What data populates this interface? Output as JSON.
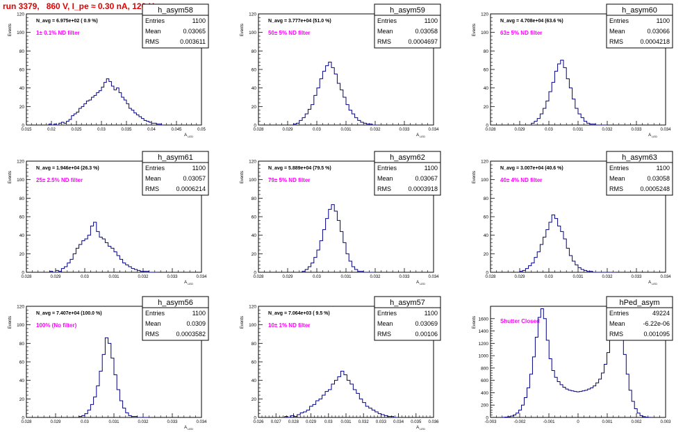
{
  "run_title": "run 3379,   860 V, I_pe ≈ 0.30 nA, 120 Hz",
  "colors": {
    "hist": "#000080",
    "title": "#e00000",
    "note": "#ff00ff"
  },
  "chart_data": [
    {
      "type": "bar",
      "name": "h_asym58",
      "navg": "N_avg = 6.975e+02 ( 0.9 %)",
      "note": "1± 0.1% ND filter",
      "entries": "1100",
      "mean": "0.03065",
      "rms": "0.003611",
      "ylabel": "Events",
      "xlabel": "A_LED",
      "xlim": [
        0.015,
        0.05
      ],
      "ylim": [
        0,
        120
      ],
      "xticks": [
        "0.015",
        "0.02",
        "0.025",
        "0.03",
        "0.035",
        "0.04",
        "0.045",
        "0.05"
      ],
      "yticks": [
        "0",
        "20",
        "40",
        "60",
        "80",
        "100",
        "120"
      ],
      "bin_edges": [
        0.0195,
        0.0425
      ],
      "counts": [
        1,
        0,
        1,
        0,
        2,
        3,
        2,
        4,
        6,
        10,
        12,
        14,
        18,
        20,
        23,
        26,
        27,
        30,
        32,
        35,
        37,
        41,
        46,
        50,
        47,
        42,
        38,
        40,
        35,
        30,
        27,
        23,
        18,
        16,
        13,
        11,
        9,
        7,
        5,
        4,
        3,
        2,
        2,
        1,
        1,
        0
      ]
    },
    {
      "type": "bar",
      "name": "h_asym59",
      "navg": "N_avg = 3.777e+04 (51.0 %)",
      "note": "50± 5% ND filter",
      "entries": "1100",
      "mean": "0.03058",
      "rms": "0.0004697",
      "ylabel": "Events",
      "xlabel": "A_LED",
      "xlim": [
        0.028,
        0.034
      ],
      "ylim": [
        0,
        120
      ],
      "xticks": [
        "0.028",
        "0.029",
        "0.03",
        "0.031",
        "0.032",
        "0.033",
        "0.034"
      ],
      "yticks": [
        "0",
        "20",
        "40",
        "60",
        "80",
        "100",
        "120"
      ],
      "bin_edges": [
        0.0292,
        0.0321
      ],
      "counts": [
        1,
        2,
        5,
        8,
        12,
        17,
        22,
        32,
        40,
        50,
        58,
        64,
        68,
        62,
        55,
        45,
        38,
        30,
        22,
        16,
        12,
        8,
        5,
        3,
        2,
        1,
        1,
        0,
        0
      ]
    },
    {
      "type": "bar",
      "name": "h_asym60",
      "navg": "N_avg = 4.708e+04 (63.6 %)",
      "note": "63± 5% ND filter",
      "entries": "1100",
      "mean": "0.03066",
      "rms": "0.0004218",
      "ylabel": "Events",
      "xlabel": "A_LED",
      "xlim": [
        0.028,
        0.034
      ],
      "ylim": [
        0,
        120
      ],
      "xticks": [
        "0.028",
        "0.029",
        "0.03",
        "0.031",
        "0.032",
        "0.033",
        "0.034"
      ],
      "yticks": [
        "0",
        "20",
        "40",
        "60",
        "80",
        "100",
        "120"
      ],
      "bin_edges": [
        0.0294,
        0.032
      ],
      "counts": [
        2,
        4,
        7,
        12,
        18,
        26,
        36,
        46,
        58,
        66,
        70,
        62,
        50,
        40,
        28,
        18,
        12,
        8,
        4,
        2,
        1,
        1,
        0,
        0,
        0,
        0
      ]
    },
    {
      "type": "bar",
      "name": "h_asym61",
      "navg": "N_avg = 1.946e+04 (26.3 %)",
      "note": "25± 2.5% ND filter",
      "entries": "1100",
      "mean": "0.03057",
      "rms": "0.0006214",
      "ylabel": "Events",
      "xlabel": "A_LED",
      "xlim": [
        0.028,
        0.034
      ],
      "ylim": [
        0,
        120
      ],
      "xticks": [
        "0.028",
        "0.029",
        "0.03",
        "0.031",
        "0.032",
        "0.033",
        "0.034"
      ],
      "yticks": [
        "0",
        "20",
        "40",
        "60",
        "80",
        "100",
        "120"
      ],
      "bin_edges": [
        0.0288,
        0.0325
      ],
      "counts": [
        1,
        0,
        2,
        1,
        4,
        6,
        10,
        14,
        20,
        26,
        30,
        34,
        36,
        40,
        50,
        54,
        44,
        38,
        36,
        32,
        28,
        26,
        22,
        18,
        14,
        10,
        8,
        6,
        4,
        3,
        2,
        1,
        1,
        1,
        0,
        0,
        0
      ]
    },
    {
      "type": "bar",
      "name": "h_asym62",
      "navg": "N_avg = 5.889e+04 (79.5 %)",
      "note": "79± 5% ND filter",
      "entries": "1100",
      "mean": "0.03067",
      "rms": "0.0003918",
      "ylabel": "Events",
      "xlabel": "A_LED",
      "xlim": [
        0.028,
        0.034
      ],
      "ylim": [
        0,
        120
      ],
      "xticks": [
        "0.028",
        "0.029",
        "0.03",
        "0.031",
        "0.032",
        "0.033",
        "0.034"
      ],
      "yticks": [
        "0",
        "20",
        "40",
        "60",
        "80",
        "100",
        "120"
      ],
      "bin_edges": [
        0.0295,
        0.032
      ],
      "counts": [
        1,
        3,
        6,
        10,
        16,
        24,
        34,
        46,
        58,
        68,
        73,
        66,
        56,
        44,
        32,
        20,
        12,
        6,
        3,
        1,
        1,
        0,
        0,
        0,
        0
      ]
    },
    {
      "type": "bar",
      "name": "h_asym63",
      "navg": "N_avg = 3.007e+04 (40.6 %)",
      "note": "40± 4% ND filter",
      "entries": "1100",
      "mean": "0.03058",
      "rms": "0.0005248",
      "ylabel": "Events",
      "xlabel": "A_LED",
      "xlim": [
        0.028,
        0.034
      ],
      "ylim": [
        0,
        120
      ],
      "xticks": [
        "0.028",
        "0.029",
        "0.03",
        "0.031",
        "0.032",
        "0.033",
        "0.034"
      ],
      "yticks": [
        "0",
        "20",
        "40",
        "60",
        "80",
        "100",
        "120"
      ],
      "bin_edges": [
        0.029,
        0.0323
      ],
      "counts": [
        1,
        2,
        4,
        7,
        10,
        16,
        22,
        30,
        38,
        46,
        54,
        62,
        58,
        50,
        44,
        36,
        26,
        18,
        12,
        8,
        5,
        3,
        2,
        1,
        1,
        0,
        0,
        0,
        0,
        0,
        0,
        0,
        0
      ]
    },
    {
      "type": "bar",
      "name": "h_asym56",
      "navg": "N_avg = 7.407e+04 (100.0 %)",
      "note": "100% (No filter)",
      "entries": "1100",
      "mean": "0.0309",
      "rms": "0.0003582",
      "ylabel": "Events",
      "xlabel": "A_LED",
      "xlim": [
        0.028,
        0.034
      ],
      "ylim": [
        0,
        120
      ],
      "xticks": [
        "0.028",
        "0.029",
        "0.03",
        "0.031",
        "0.032",
        "0.033",
        "0.034"
      ],
      "yticks": [
        "0",
        "20",
        "40",
        "60",
        "80",
        "100",
        "120"
      ],
      "bin_edges": [
        0.0298,
        0.0322
      ],
      "counts": [
        1,
        2,
        4,
        8,
        14,
        22,
        34,
        50,
        68,
        86,
        80,
        64,
        46,
        30,
        18,
        10,
        5,
        2,
        1,
        1,
        0,
        0,
        0,
        0
      ]
    },
    {
      "type": "bar",
      "name": "h_asym57",
      "navg": "N_avg = 7.064e+03 ( 9.5 %)",
      "note": "10± 1% ND filter",
      "entries": "1100",
      "mean": "0.03069",
      "rms": "0.00106",
      "ylabel": "Events",
      "xlabel": "A_LED",
      "xlim": [
        0.026,
        0.036
      ],
      "ylim": [
        0,
        120
      ],
      "xticks": [
        "0.026",
        "0.027",
        "0.028",
        "0.029",
        "0.03",
        "0.031",
        "0.032",
        "0.033",
        "0.034",
        "0.035",
        "0.036"
      ],
      "yticks": [
        "0",
        "20",
        "40",
        "60",
        "80",
        "100",
        "120"
      ],
      "bin_edges": [
        0.0275,
        0.0339
      ],
      "counts": [
        1,
        0,
        2,
        1,
        3,
        5,
        6,
        8,
        12,
        14,
        18,
        20,
        24,
        28,
        30,
        36,
        40,
        44,
        50,
        46,
        40,
        36,
        30,
        26,
        20,
        16,
        12,
        10,
        8,
        6,
        4,
        3,
        2,
        1,
        1,
        0
      ]
    },
    {
      "type": "bar",
      "name": "hPed_asym",
      "navg": "",
      "note": "Shutter Closed",
      "entries": "49224",
      "mean": "-6.22e-06",
      "rms": "0.001095",
      "ylabel": "Events",
      "xlabel": "",
      "xlim": [
        -0.003,
        0.003
      ],
      "ylim": [
        0,
        1800
      ],
      "xticks": [
        "-0.003",
        "-0.002",
        "-0.001",
        "0",
        "0.001",
        "0.002",
        "0.003"
      ],
      "yticks": [
        "0",
        "200",
        "400",
        "600",
        "800",
        "1000",
        "1200",
        "1400",
        "1600"
      ],
      "bin_edges": [
        -0.0026,
        0.0025
      ],
      "counts": [
        2,
        6,
        12,
        22,
        40,
        70,
        120,
        200,
        320,
        480,
        700,
        980,
        1300,
        1620,
        1760,
        1600,
        1250,
        950,
        760,
        650,
        580,
        530,
        490,
        460,
        440,
        430,
        420,
        415,
        420,
        430,
        440,
        460,
        480,
        510,
        560,
        620,
        720,
        860,
        1050,
        1300,
        1560,
        1720,
        1660,
        1380,
        1020,
        700,
        440,
        260,
        140,
        70,
        30,
        12,
        4,
        1
      ]
    }
  ]
}
